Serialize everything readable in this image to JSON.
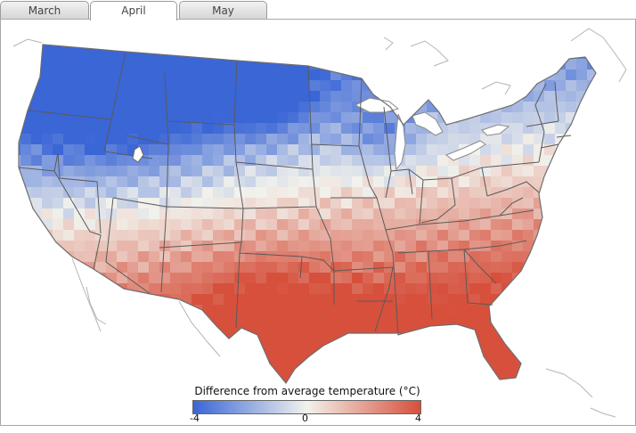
{
  "tabs": [
    {
      "label": "March",
      "active": false
    },
    {
      "label": "April",
      "active": true
    },
    {
      "label": "May",
      "active": false
    }
  ],
  "legend": {
    "title": "Difference from average temperature (°C)",
    "min_label": "-4",
    "mid_label": "0",
    "max_label": "4"
  },
  "colors": {
    "cold": "#3a66d6",
    "neutral": "#f2f2ec",
    "warm": "#d6503c",
    "state_border": "#5a5a5a",
    "coastline": "#9a9a9a"
  },
  "map": {
    "region": "contiguous United States",
    "range": [
      -4,
      4
    ]
  }
}
